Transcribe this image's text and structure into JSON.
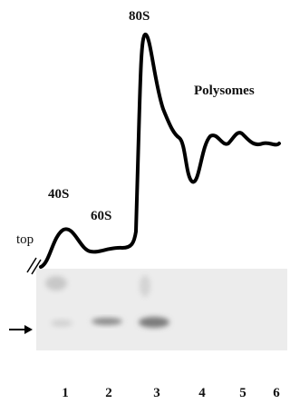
{
  "labels": {
    "top": "top",
    "s40": "40S",
    "s60": "60S",
    "s80": "80S",
    "polysomes": "Polysomes"
  },
  "lanes": [
    "1",
    "2",
    "3",
    "4",
    "5",
    "6"
  ]
}
